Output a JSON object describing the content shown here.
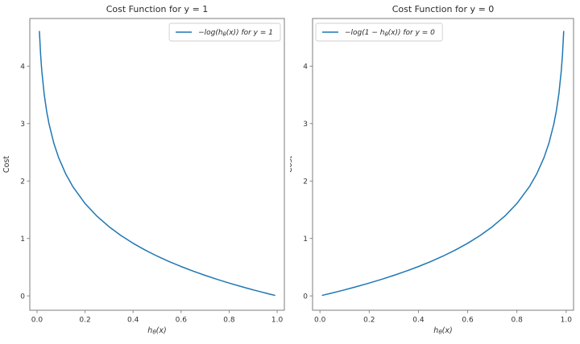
{
  "figure": {
    "background": "#ffffff",
    "spine_color": "#7d7d7d",
    "legend_border_color": "#cfcfcf"
  },
  "chart_data": [
    {
      "type": "line",
      "title": "Cost Function for y = 1",
      "xlabel": "h~θ~(x)",
      "ylabel": "Cost",
      "xlim": [
        -0.03,
        1.03
      ],
      "ylim": [
        -0.25,
        4.83
      ],
      "grid": false,
      "xticks": {
        "values": [
          0.0,
          0.2,
          0.4,
          0.6,
          0.8,
          1.0
        ],
        "labels": [
          "0.0",
          "0.2",
          "0.4",
          "0.6",
          "0.8",
          "1.0"
        ]
      },
      "yticks": {
        "values": [
          0,
          1,
          2,
          3,
          4
        ],
        "labels": [
          "0",
          "1",
          "2",
          "3",
          "4"
        ]
      },
      "legend": {
        "label": "−log(h~θ~(x)) for y = 1",
        "loc": "upper-right"
      },
      "series": [
        {
          "name": "-log(h(x)) for y = 1",
          "color": "#1f77b4",
          "x": [
            0.01,
            0.015,
            0.02,
            0.03,
            0.04,
            0.05,
            0.07,
            0.09,
            0.12,
            0.15,
            0.2,
            0.25,
            0.3,
            0.35,
            0.4,
            0.45,
            0.5,
            0.55,
            0.6,
            0.65,
            0.7,
            0.75,
            0.8,
            0.85,
            0.88,
            0.91,
            0.93,
            0.95,
            0.96,
            0.97,
            0.98,
            0.985,
            0.99
          ],
          "y": [
            4.605,
            4.2,
            3.912,
            3.507,
            3.219,
            2.996,
            2.659,
            2.408,
            2.12,
            1.897,
            1.609,
            1.386,
            1.204,
            1.05,
            0.916,
            0.799,
            0.693,
            0.598,
            0.511,
            0.431,
            0.357,
            0.288,
            0.223,
            0.163,
            0.128,
            0.094,
            0.073,
            0.051,
            0.041,
            0.03,
            0.02,
            0.015,
            0.01
          ]
        }
      ]
    },
    {
      "type": "line",
      "title": "Cost Function for y = 0",
      "xlabel": "h~θ~(x)",
      "ylabel": "Cost",
      "xlim": [
        -0.03,
        1.03
      ],
      "ylim": [
        -0.25,
        4.83
      ],
      "grid": false,
      "xticks": {
        "values": [
          0.0,
          0.2,
          0.4,
          0.6,
          0.8,
          1.0
        ],
        "labels": [
          "0.0",
          "0.2",
          "0.4",
          "0.6",
          "0.8",
          "1.0"
        ]
      },
      "yticks": {
        "values": [
          0,
          1,
          2,
          3,
          4
        ],
        "labels": [
          "0",
          "1",
          "2",
          "3",
          "4"
        ]
      },
      "legend": {
        "label": "−log(1 − h~θ~(x)) for y = 0",
        "loc": "upper-left"
      },
      "series": [
        {
          "name": "-log(1 - h(x)) for y = 0",
          "color": "#1f77b4",
          "x": [
            0.01,
            0.015,
            0.02,
            0.03,
            0.04,
            0.05,
            0.07,
            0.09,
            0.12,
            0.15,
            0.2,
            0.25,
            0.3,
            0.35,
            0.4,
            0.45,
            0.5,
            0.55,
            0.6,
            0.65,
            0.7,
            0.75,
            0.8,
            0.85,
            0.88,
            0.91,
            0.93,
            0.95,
            0.96,
            0.97,
            0.98,
            0.985,
            0.99
          ],
          "y": [
            0.01,
            0.015,
            0.02,
            0.031,
            0.041,
            0.051,
            0.073,
            0.094,
            0.128,
            0.163,
            0.223,
            0.288,
            0.357,
            0.431,
            0.511,
            0.598,
            0.693,
            0.799,
            0.916,
            1.05,
            1.204,
            1.386,
            1.609,
            1.897,
            2.12,
            2.408,
            2.659,
            2.996,
            3.219,
            3.507,
            3.912,
            4.2,
            4.605
          ]
        }
      ]
    }
  ]
}
